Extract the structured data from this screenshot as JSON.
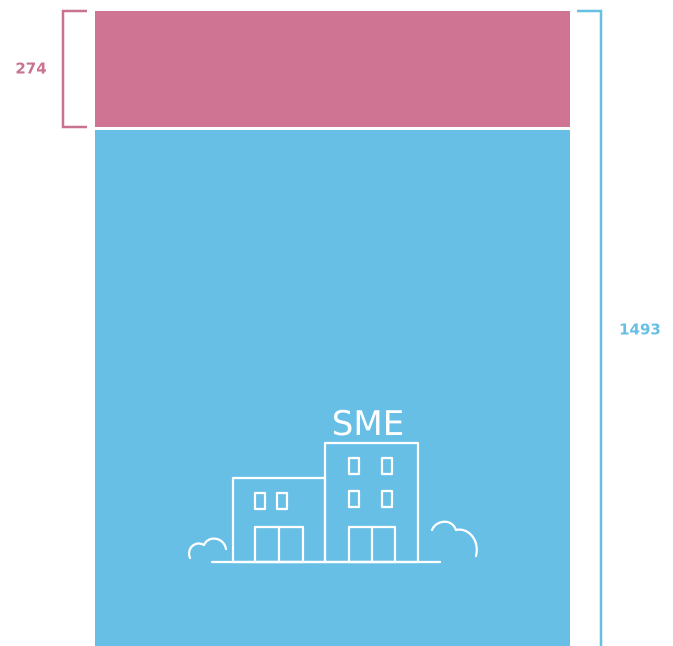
{
  "chart_data": {
    "type": "bar",
    "layout": "stacked-single-column",
    "total": 1493,
    "segments": [
      {
        "value": 274,
        "color": "#d07494"
      },
      {
        "value": 1219,
        "color": "#67bfe6",
        "label": "SME"
      }
    ],
    "annotations": [
      {
        "text": "274",
        "brackets": "top-segment",
        "side": "left",
        "color": "#c9738f"
      },
      {
        "text": "1493",
        "brackets": "total",
        "side": "right",
        "color": "#67bfe6"
      }
    ],
    "icon": "buildings-icon",
    "grid": false,
    "legend": "none"
  }
}
